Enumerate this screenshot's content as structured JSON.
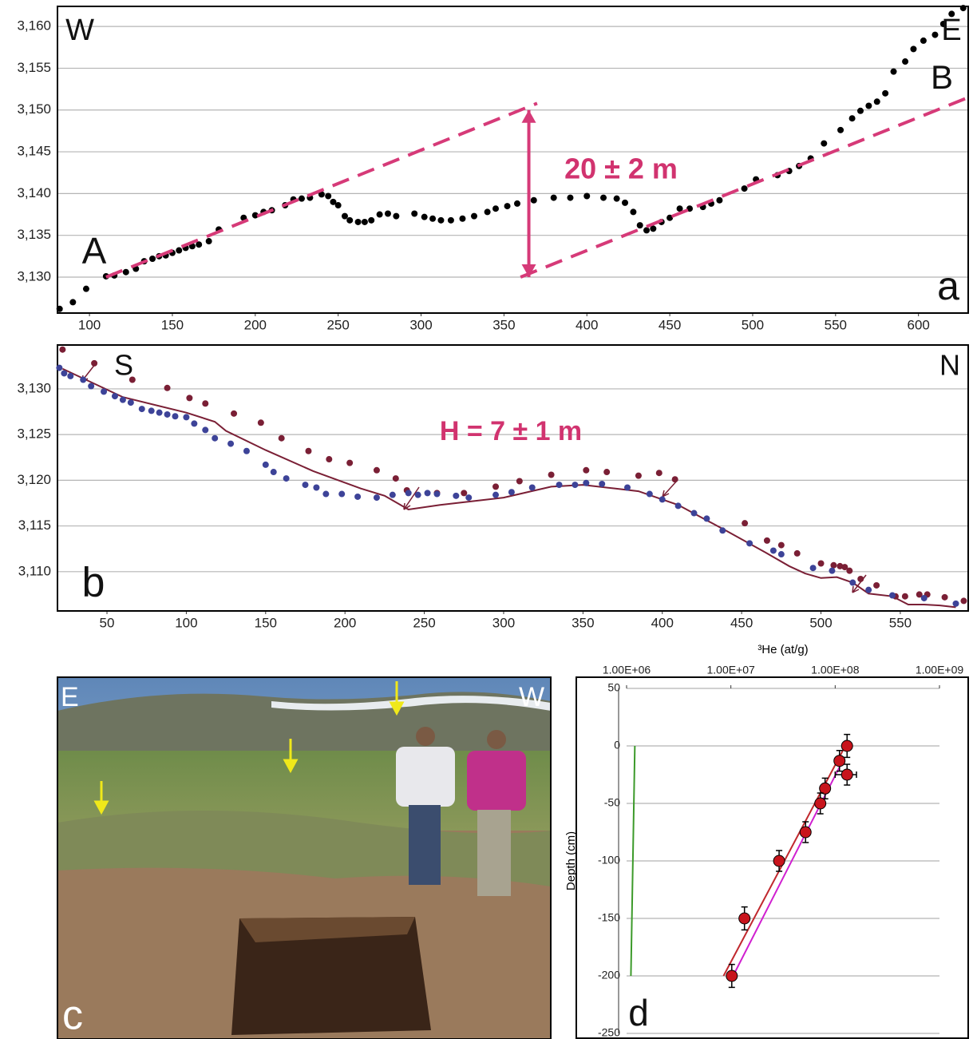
{
  "chart_data": [
    {
      "type": "scatter",
      "xlim": [
        80.7,
        630
      ],
      "ylim": [
        3125.7,
        3162.4
      ],
      "xticks": [
        100,
        150,
        200,
        250,
        300,
        350,
        400,
        450,
        500,
        550,
        600
      ],
      "yticks": [
        {
          "value": 3130,
          "label": "3,130"
        },
        {
          "value": 3135,
          "label": "3,135"
        },
        {
          "value": 3140,
          "label": "3,140"
        },
        {
          "value": 3145,
          "label": "3,145"
        },
        {
          "value": 3150,
          "label": "3,150"
        },
        {
          "value": 3155,
          "label": "3,155"
        },
        {
          "value": 3160,
          "label": "3,160"
        }
      ],
      "grid": true,
      "annotations": [
        "W",
        "E",
        "A",
        "B",
        "20 ± 2 m",
        "a"
      ],
      "series": [
        {
          "color": "#000000",
          "mode": "markers",
          "x": [
            82,
            90,
            98,
            110,
            115,
            122,
            128,
            133,
            138,
            142,
            146,
            150,
            154,
            158,
            162,
            166,
            172,
            178,
            193,
            200,
            205,
            210,
            218,
            223,
            228,
            233,
            240,
            244,
            247,
            250,
            254,
            257,
            262,
            266,
            270,
            275,
            280,
            285,
            296,
            302,
            307,
            312,
            318,
            325,
            332,
            340,
            345,
            352,
            358,
            368,
            380,
            390,
            400,
            410,
            418,
            423,
            428,
            432,
            436,
            440,
            445,
            450,
            456,
            462,
            470,
            475,
            480,
            495,
            502,
            515,
            522,
            528,
            535,
            543,
            553,
            560,
            565,
            570,
            575,
            580,
            585,
            592,
            597,
            603,
            610,
            615,
            620,
            627
          ],
          "values": [
            3126.2,
            3127,
            3128.6,
            3130.1,
            3130.2,
            3130.6,
            3131,
            3131.9,
            3132.2,
            3132.5,
            3132.6,
            3132.9,
            3133.2,
            3133.5,
            3133.7,
            3133.9,
            3134.3,
            3135.7,
            3137.1,
            3137.4,
            3137.8,
            3138,
            3138.6,
            3139.3,
            3139.4,
            3139.5,
            3139.9,
            3139.7,
            3139,
            3138.6,
            3137.3,
            3136.8,
            3136.6,
            3136.6,
            3136.8,
            3137.5,
            3137.6,
            3137.3,
            3137.6,
            3137.2,
            3137,
            3136.8,
            3136.8,
            3137,
            3137.3,
            3137.8,
            3138.2,
            3138.5,
            3138.8,
            3139.2,
            3139.5,
            3139.5,
            3139.7,
            3139.5,
            3139.4,
            3138.9,
            3137.8,
            3136.2,
            3135.6,
            3135.8,
            3136.6,
            3137.1,
            3138.2,
            3138.2,
            3138.4,
            3138.8,
            3139.2,
            3140.6,
            3141.7,
            3142.2,
            3142.7,
            3143.3,
            3144.2,
            3146,
            3147.6,
            3149,
            3149.9,
            3150.5,
            3151,
            3152,
            3154.6,
            3155.8,
            3157.3,
            3158.3,
            3159,
            3160.3,
            3161.5,
            3162.2
          ]
        },
        {
          "color": "#d63a78",
          "mode": "dashed",
          "x": [
            110,
            370
          ],
          "values": [
            3130,
            3150.8
          ]
        },
        {
          "color": "#d63a78",
          "mode": "dashed",
          "x": [
            360,
            630
          ],
          "values": [
            3130,
            3151.5
          ]
        },
        {
          "color": "#d63a78",
          "mode": "arrow",
          "x": [
            365,
            365
          ],
          "values": [
            3150,
            3130
          ]
        }
      ]
    },
    {
      "type": "scatter",
      "xlim": [
        18.8,
        592.8
      ],
      "ylim": [
        3105.7,
        3134.8
      ],
      "xticks": [
        50,
        100,
        150,
        200,
        250,
        300,
        350,
        400,
        450,
        500,
        550
      ],
      "yticks": [
        {
          "value": 3110,
          "label": "3,110"
        },
        {
          "value": 3115,
          "label": "3,115"
        },
        {
          "value": 3120,
          "label": "3,120"
        },
        {
          "value": 3125,
          "label": "3,125"
        },
        {
          "value": 3130,
          "label": "3,130"
        }
      ],
      "grid": true,
      "annotations": [
        "S",
        "N",
        "H = 7 ± 1 m",
        "b"
      ],
      "series": [
        {
          "color": "#7a1f35",
          "mode": "line",
          "x": [
            22,
            60,
            100,
            118,
            125,
            150,
            180,
            210,
            225,
            240,
            260,
            300,
            330,
            350,
            370,
            385,
            410,
            440,
            465,
            480,
            490,
            500,
            510,
            520,
            530,
            545,
            555,
            565,
            575,
            585
          ],
          "values": [
            3132.2,
            3129.1,
            3127.4,
            3126.4,
            3125.4,
            3123.3,
            3121,
            3119.1,
            3118.3,
            3116.8,
            3117.3,
            3118.1,
            3119.3,
            3119.5,
            3119.1,
            3118.8,
            3117.3,
            3114.5,
            3112.1,
            3110.6,
            3109.8,
            3109.3,
            3109.4,
            3108.8,
            3107.6,
            3107.3,
            3106.4,
            3106.4,
            3106.3,
            3106.1
          ]
        },
        {
          "color": "#7a1f35",
          "mode": "markers",
          "x": [
            22,
            42,
            66,
            88,
            102,
            112,
            130,
            147,
            160,
            177,
            190,
            203,
            220,
            232,
            239,
            258,
            275,
            295,
            310,
            330,
            352,
            365,
            385,
            398,
            408,
            452,
            466,
            475,
            485,
            500,
            508,
            512,
            515,
            518,
            525,
            535,
            547,
            553,
            562,
            567,
            578,
            590
          ],
          "values": [
            3134.3,
            3132.8,
            3131,
            3130.1,
            3129,
            3128.4,
            3127.3,
            3126.3,
            3124.6,
            3123.2,
            3122.3,
            3121.9,
            3121.1,
            3120.2,
            3118.9,
            3118.6,
            3118.6,
            3119.3,
            3119.9,
            3120.6,
            3121.1,
            3120.9,
            3120.5,
            3120.8,
            3120.1,
            3115.3,
            3113.4,
            3112.9,
            3112,
            3110.9,
            3110.7,
            3110.6,
            3110.5,
            3110.1,
            3109.2,
            3108.5,
            3107.3,
            3107.3,
            3107.5,
            3107.5,
            3107.2,
            3106.8
          ]
        },
        {
          "color": "#3d4398",
          "mode": "markers",
          "x": [
            20,
            23,
            27,
            35,
            40,
            48,
            55,
            60,
            65,
            72,
            78,
            83,
            88,
            93,
            100,
            105,
            112,
            118,
            128,
            138,
            150,
            155,
            163,
            175,
            182,
            188,
            198,
            208,
            220,
            230,
            240,
            246,
            252,
            258,
            270,
            278,
            295,
            305,
            318,
            335,
            345,
            352,
            362,
            378,
            392,
            400,
            410,
            420,
            428,
            438,
            455,
            470,
            475,
            495,
            507,
            520,
            530,
            545,
            565,
            585
          ],
          "values": [
            3132.3,
            3131.7,
            3131.4,
            3131,
            3130.3,
            3129.7,
            3129.2,
            3128.8,
            3128.5,
            3127.8,
            3127.6,
            3127.4,
            3127.2,
            3127,
            3126.9,
            3126.2,
            3125.5,
            3124.6,
            3124,
            3123.2,
            3121.7,
            3120.9,
            3120.2,
            3119.5,
            3119.2,
            3118.5,
            3118.5,
            3118.2,
            3118.1,
            3118.4,
            3118.6,
            3118.4,
            3118.6,
            3118.5,
            3118.3,
            3118.1,
            3118.4,
            3118.7,
            3119.2,
            3119.5,
            3119.5,
            3119.7,
            3119.6,
            3119.2,
            3118.5,
            3117.9,
            3117.2,
            3116.4,
            3115.8,
            3114.5,
            3113.1,
            3112.3,
            3111.9,
            3110.4,
            3110.1,
            3108.8,
            3108,
            3107.4,
            3107.1,
            3106.5
          ]
        }
      ]
    },
    {
      "type": "scatter",
      "xscale": "log",
      "xaxis_position": "top",
      "x_label": "³He (at/g)",
      "y_label": "Depth (cm)",
      "xlim": [
        1000000,
        1000000000
      ],
      "ylim": [
        -250,
        50
      ],
      "xticks": [
        {
          "value": 1000000,
          "label": "1.00E+06"
        },
        {
          "value": 10000000,
          "label": "1.00E+07"
        },
        {
          "value": 100000000,
          "label": "1.00E+08"
        },
        {
          "value": 1000000000,
          "label": "1.00E+09"
        }
      ],
      "yticks": [
        50,
        0,
        -50,
        -100,
        -150,
        -200,
        -250
      ],
      "grid": true,
      "annotations": [
        "d"
      ],
      "series": [
        {
          "color": "#3c9a2a",
          "mode": "line",
          "x": [
            1200000,
            1100000
          ],
          "values": [
            0,
            -200
          ]
        },
        {
          "color": "#c0282d",
          "mode": "line",
          "x": [
            8500000,
            125000000
          ],
          "values": [
            -200,
            0
          ]
        },
        {
          "color": "#d020d0",
          "mode": "line",
          "x": [
            10500000,
            115000000
          ],
          "values": [
            -200,
            -15
          ]
        },
        {
          "color": "#c8141c",
          "mode": "points",
          "x": [
            130000000,
            110000000,
            130000000,
            80000000,
            72000000,
            52000000,
            29000000,
            13500000,
            10200000
          ],
          "values": [
            0,
            -13,
            -25,
            -37,
            -50,
            -75,
            -100,
            -150,
            -200
          ],
          "y_errors": [
            10,
            9,
            9,
            9,
            9,
            9,
            9,
            10,
            10
          ],
          "x_errors": [
            null,
            null,
            30000000,
            null,
            null,
            null,
            null,
            null,
            null
          ]
        }
      ]
    }
  ],
  "photo": {
    "labels": [
      "E",
      "W",
      "c"
    ]
  }
}
